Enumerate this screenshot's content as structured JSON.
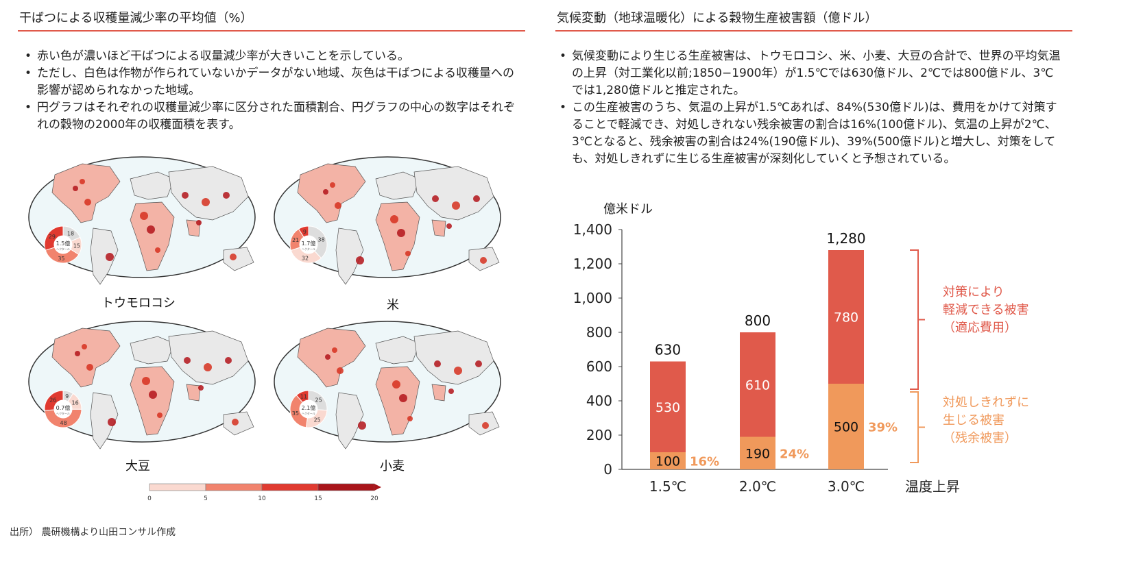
{
  "left": {
    "title": "干ばつによる収穫量減少率の平均値（%）",
    "bullets": [
      "赤い色が濃いほど干ばつによる収量減少率が大きいことを示している。",
      "ただし、白色は作物が作られていないかデータがない地域、灰色は干ばつによる収穫量への影響が認められなかった地域。",
      "円グラフはそれぞれの収穫量減少率に区分された面積割合、円グラフの中心の数字はそれぞれの穀物の2000年の収穫面積を表す。"
    ],
    "maps": [
      {
        "crop": "トウモロコシ",
        "area": "1.5億",
        "unit": "ヘクタール",
        "pie": [
          18,
          15,
          35,
          29
        ]
      },
      {
        "crop": "米",
        "area": "1.7億",
        "unit": "ヘクタール",
        "pie": [
          38,
          32,
          21,
          9
        ]
      },
      {
        "crop": "大豆",
        "area": "0.7億",
        "unit": "ヘクタール",
        "pie": [
          9,
          16,
          48,
          26
        ]
      },
      {
        "crop": "小麦",
        "area": "2.1億",
        "unit": "ヘクタール",
        "pie": [
          25,
          25,
          35,
          11
        ]
      }
    ],
    "colorbar": {
      "ticks": [
        "0",
        "5",
        "10",
        "15",
        "20"
      ],
      "colors": [
        "#FAD9D0",
        "#F1836D",
        "#E03A30",
        "#A8141A"
      ]
    },
    "source": "出所） 農研機構より山田コンサル作成"
  },
  "right": {
    "title": "気候変動（地球温暖化）による穀物生産被害額（億ドル）",
    "bullets": [
      "気候変動により生じる生産被害は、トウモロコシ、米、小麦、大豆の合計で、世界の平均気温の上昇（対工業化以前;1850−1900年）が1.5℃では630億ドル、2℃では800億ドル、3℃では1,280億ドルと推定された。",
      "この生産被害のうち、気温の上昇が1.5℃あれば、84%(530億ドル)は、費用をかけて対策することで軽減でき、対処しきれない残余被害の割合は16%(100億ドル)、気温の上昇が2℃、3℃となると、残余被害の割合は24%(190億ドル)、39%(500億ドル)と増大し、対策をしても、対処しきれずに生じる生産被害が深刻化していくと予想されている。"
    ]
  },
  "chart_data": {
    "type": "bar",
    "stacked": true,
    "ylabel": "億米ドル",
    "xlabel": "温度上昇",
    "ylim": [
      0,
      1400
    ],
    "yticks": [
      0,
      200,
      400,
      600,
      800,
      1000,
      1200,
      1400
    ],
    "ytick_labels": [
      "0",
      "200",
      "400",
      "600",
      "800",
      "1,000",
      "1,200",
      "1,400"
    ],
    "categories": [
      "1.5℃",
      "2.0℃",
      "3.0℃"
    ],
    "totals": [
      "630",
      "800",
      "1,280"
    ],
    "percent_labels": [
      "16%",
      "24%",
      "39%"
    ],
    "series": [
      {
        "name": "対処しきれずに生じる被害（残余被害）",
        "values": [
          100,
          190,
          500
        ],
        "color": "#F0995B"
      },
      {
        "name": "対策により軽減できる被害（適応費用）",
        "values": [
          530,
          610,
          780
        ],
        "color": "#E05A4B"
      }
    ],
    "annotations": {
      "upper": [
        "対策により",
        "軽減できる被害",
        "（適応費用）"
      ],
      "lower": [
        "対処しきれずに",
        "生じる被害",
        "（残余被害）"
      ]
    }
  }
}
